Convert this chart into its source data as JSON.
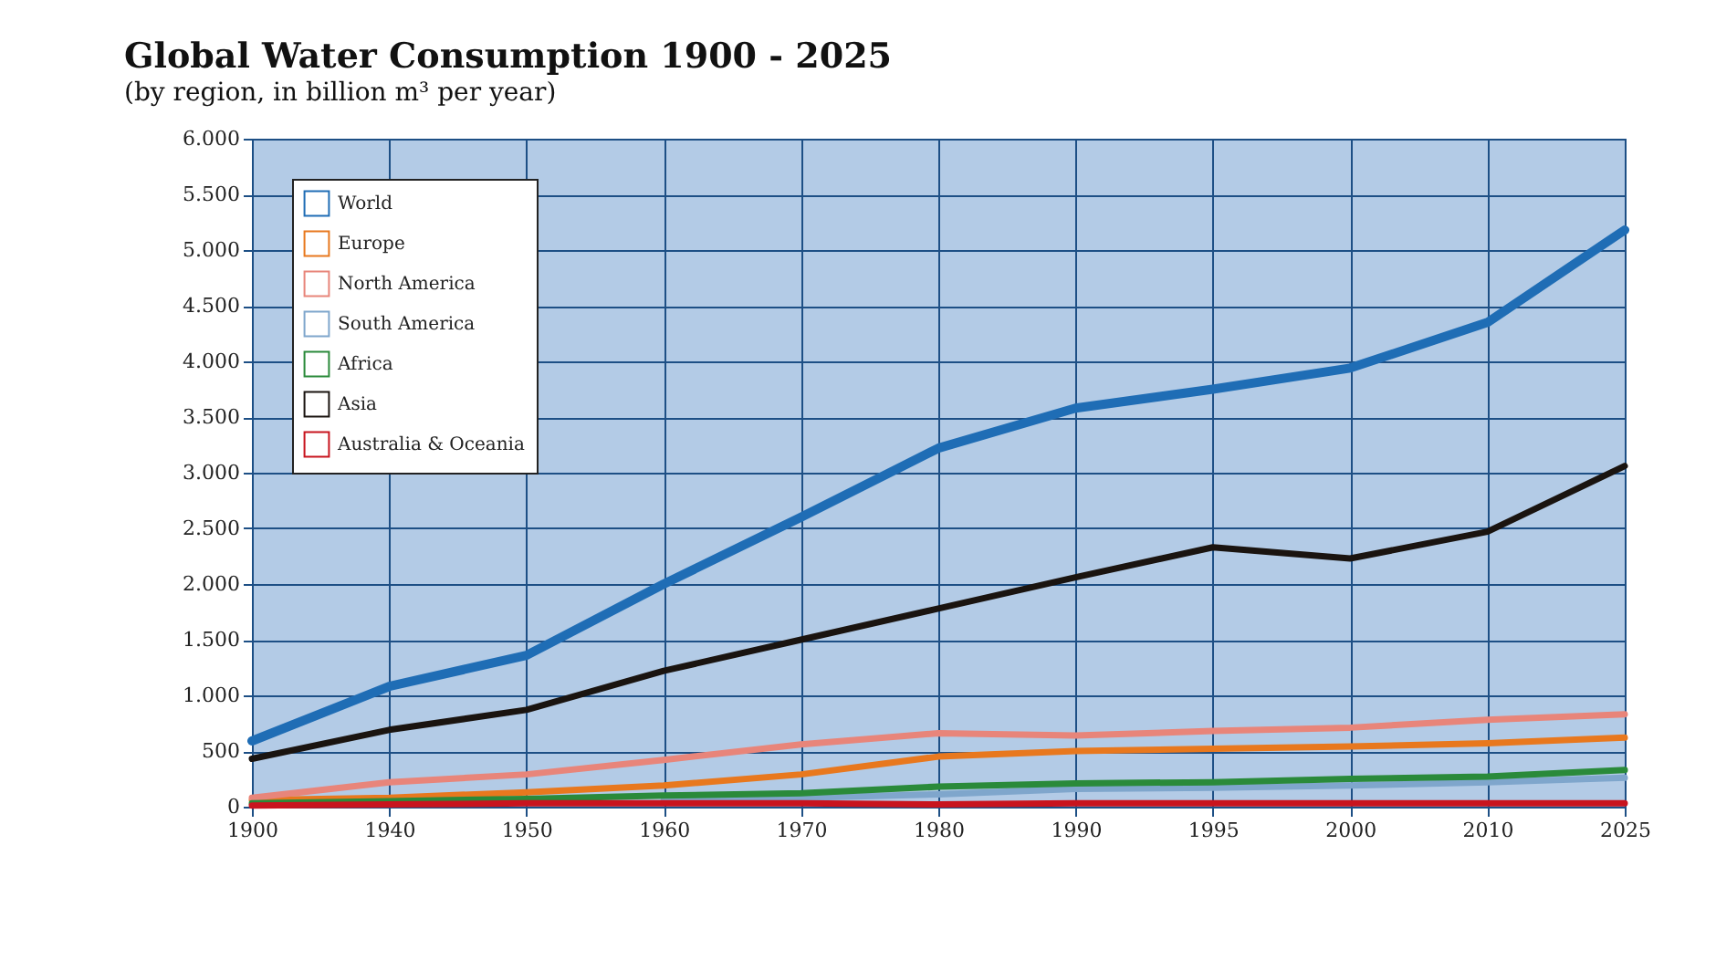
{
  "chart_data": {
    "type": "line",
    "title": "Global Water Consumption 1900 - 2025",
    "subtitle": "(by region, in billion m³ per year)",
    "categories": [
      "1900",
      "1940",
      "1950",
      "1960",
      "1970",
      "1980",
      "1990",
      "1995",
      "2000",
      "2010",
      "2025"
    ],
    "series": [
      {
        "name": "World",
        "color": "#1f6db5",
        "values": [
          590,
          1080,
          1360,
          2000,
          2600,
          3220,
          3580,
          3750,
          3940,
          4350,
          5180
        ]
      },
      {
        "name": "Europe",
        "color": "#e8781e",
        "values": [
          60,
          80,
          130,
          190,
          290,
          450,
          500,
          520,
          540,
          570,
          620
        ]
      },
      {
        "name": "North America",
        "color": "#e8857a",
        "values": [
          80,
          220,
          290,
          420,
          560,
          660,
          640,
          680,
          710,
          780,
          830
        ]
      },
      {
        "name": "South America",
        "color": "#7fa6cc",
        "values": [
          null,
          null,
          null,
          60,
          80,
          110,
          160,
          170,
          190,
          220,
          260
        ]
      },
      {
        "name": "Africa",
        "color": "#2a8a3a",
        "values": [
          30,
          50,
          70,
          100,
          120,
          180,
          210,
          220,
          250,
          270,
          330
        ]
      },
      {
        "name": "Asia",
        "color": "#1a1410",
        "values": [
          430,
          690,
          870,
          1220,
          1500,
          1780,
          2060,
          2330,
          2230,
          2470,
          3060
        ]
      },
      {
        "name": "Australia & Oceania",
        "color": "#c8141e",
        "values": [
          10,
          20,
          30,
          30,
          30,
          20,
          30,
          30,
          30,
          30,
          30
        ]
      }
    ],
    "ylim": [
      0,
      6000
    ],
    "yticks": [
      0,
      500,
      {
        "value": 1000,
        "label": "1.000"
      },
      {
        "value": 1500,
        "label": "1.500"
      },
      {
        "value": 2000,
        "label": "2.000"
      },
      {
        "value": 2500,
        "label": "2.500"
      },
      {
        "value": 3000,
        "label": "3.000"
      },
      {
        "value": 3500,
        "label": "3.500"
      },
      {
        "value": 4000,
        "label": "4.000"
      },
      {
        "value": 4500,
        "label": "4.500"
      },
      {
        "value": 5000,
        "label": "5.000"
      },
      {
        "value": 5500,
        "label": "5.500"
      },
      {
        "value": 6000,
        "label": "6.000"
      }
    ],
    "grid": true,
    "legend": "top left",
    "line_style": "solid",
    "marker": "none"
  }
}
